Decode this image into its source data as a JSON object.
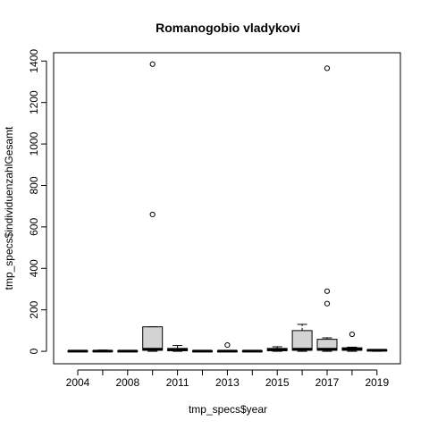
{
  "chart_data": {
    "type": "boxplot",
    "title": "Romanogobio vladykovi",
    "xlabel": "tmp_specs$year",
    "ylabel": "tmp_specs$individuenzahlGesamt",
    "ylim": [
      -60,
      1440
    ],
    "yticks": [
      0,
      200,
      400,
      600,
      800,
      1000,
      1200,
      1400
    ],
    "xtick_labels": [
      "2004",
      "2008",
      "2011",
      "2013",
      "2015",
      "2017",
      "2019"
    ],
    "grid": false,
    "legend": "none",
    "box_fill": "#d3d3d3",
    "groups": [
      {
        "year": "2004",
        "min": 0,
        "q1": 0,
        "median": 1,
        "q3": 2,
        "max": 3,
        "outliers": []
      },
      {
        "year": "2006",
        "min": 0,
        "q1": 0,
        "median": 1,
        "q3": 3,
        "max": 6,
        "outliers": []
      },
      {
        "year": "2008",
        "min": 0,
        "q1": 0,
        "median": 1,
        "q3": 2,
        "max": 3,
        "outliers": []
      },
      {
        "year": "2010",
        "min": 0,
        "q1": 5,
        "median": 10,
        "q3": 118,
        "max": 118,
        "outliers": [
          660,
          1385
        ]
      },
      {
        "year": "2011",
        "min": 0,
        "q1": 3,
        "median": 8,
        "q3": 14,
        "max": 28,
        "outliers": []
      },
      {
        "year": "2012",
        "min": 0,
        "q1": 0,
        "median": 1,
        "q3": 2,
        "max": 3,
        "outliers": []
      },
      {
        "year": "2013",
        "min": 0,
        "q1": 0,
        "median": 1,
        "q3": 2,
        "max": 3,
        "outliers": [
          30
        ]
      },
      {
        "year": "2014",
        "min": 0,
        "q1": 0,
        "median": 1,
        "q3": 2,
        "max": 3,
        "outliers": []
      },
      {
        "year": "2015",
        "min": 0,
        "q1": 3,
        "median": 8,
        "q3": 14,
        "max": 22,
        "outliers": []
      },
      {
        "year": "2016",
        "min": 0,
        "q1": 5,
        "median": 10,
        "q3": 100,
        "max": 130,
        "outliers": []
      },
      {
        "year": "2017",
        "min": 0,
        "q1": 5,
        "median": 10,
        "q3": 58,
        "max": 65,
        "outliers": [
          230,
          290,
          1365
        ]
      },
      {
        "year": "2018",
        "min": 0,
        "q1": 5,
        "median": 10,
        "q3": 17,
        "max": 20,
        "outliers": [
          82
        ]
      },
      {
        "year": "2019",
        "min": 0,
        "q1": 2,
        "median": 5,
        "q3": 7,
        "max": 8,
        "outliers": []
      }
    ]
  }
}
